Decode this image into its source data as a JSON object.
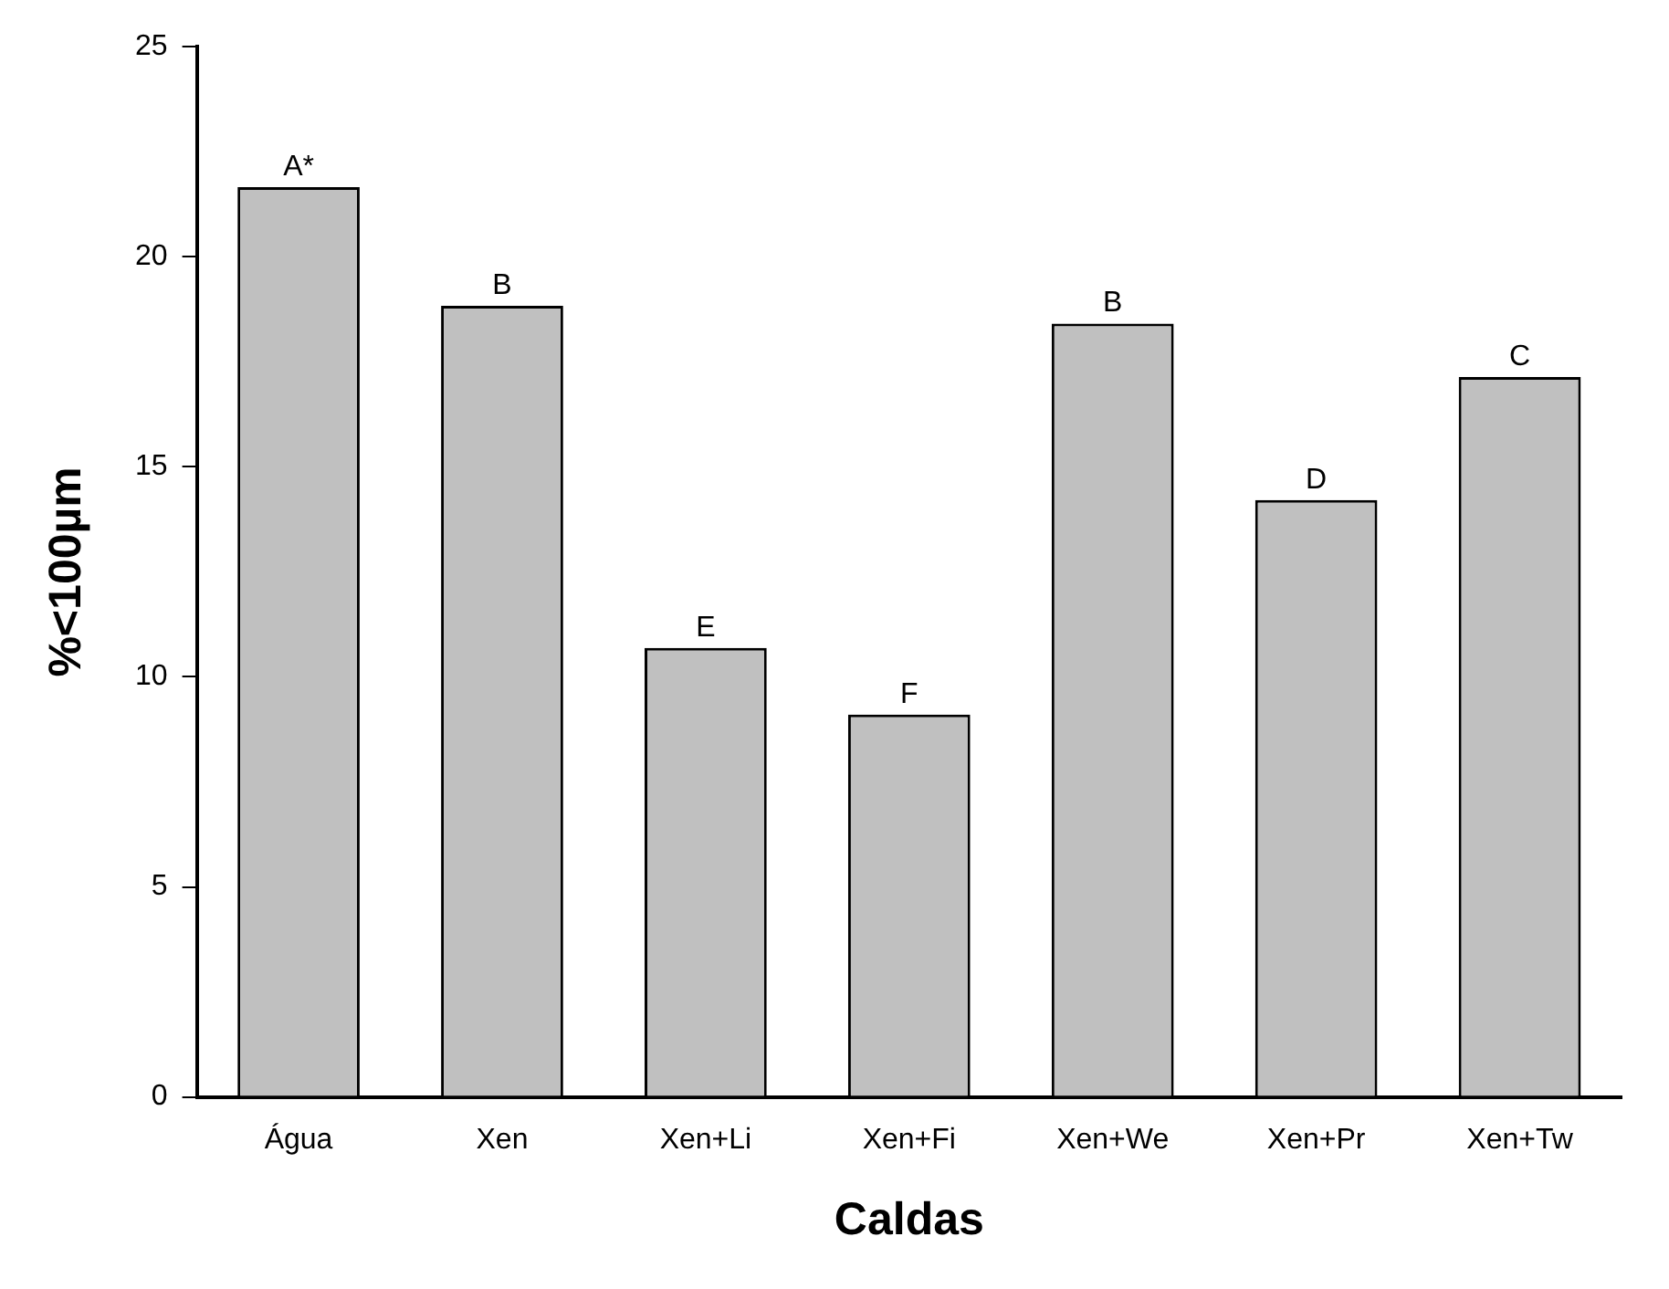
{
  "chart_data": {
    "type": "bar",
    "xlabel": "Caldas",
    "ylabel": "%<100µm",
    "categories": [
      "Água",
      "Xen",
      "Xen+Li",
      "Xen+Fi",
      "Xen+We",
      "Xen+Pr",
      "Xen+Tw"
    ],
    "values": [
      21.66,
      18.83,
      10.69,
      9.1,
      18.41,
      14.21,
      17.14
    ],
    "value_labels": [
      "A*",
      "B",
      "E",
      "F",
      "B",
      "D",
      "C"
    ],
    "color": "#c0c0c0",
    "ylim": [
      0,
      25
    ],
    "yticks": [
      0,
      5,
      10,
      15,
      20,
      25
    ],
    "grid": false,
    "legend": false
  }
}
